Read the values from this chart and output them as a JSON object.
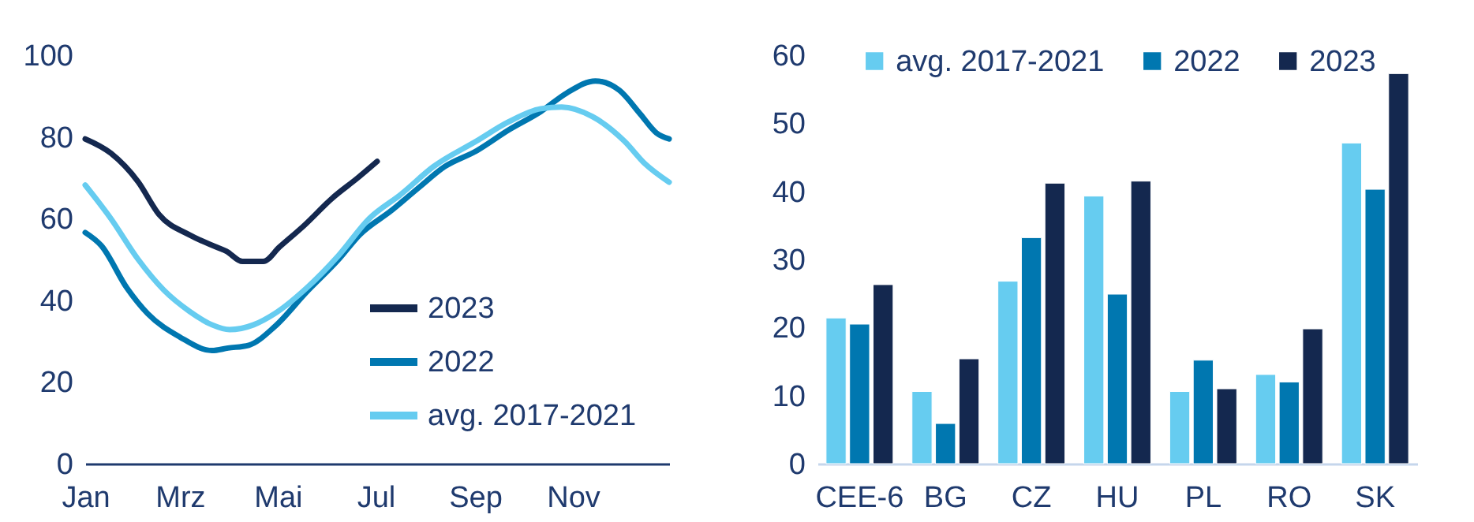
{
  "chart_data": [
    {
      "type": "line",
      "xlim": [
        "--01-01",
        "--12-31"
      ],
      "xticks": [
        {
          "value": "--01-01",
          "label": "Jan"
        },
        {
          "value": "--03-01",
          "label": "Mrz"
        },
        {
          "value": "--05-01",
          "label": "Mai"
        },
        {
          "value": "--07-01",
          "label": "Jul"
        },
        {
          "value": "--09-01",
          "label": "Sep"
        },
        {
          "value": "--11-01",
          "label": "Nov"
        }
      ],
      "ylim": [
        0,
        100
      ],
      "yticks": [
        0,
        20,
        40,
        60,
        80,
        100
      ],
      "legend": "bottom right",
      "series": [
        {
          "name": "2023",
          "color": "#14284f",
          "x": [
            "--01-01",
            "--01-17",
            "--02-03",
            "--02-16",
            "--03-07",
            "--03-24",
            "--03-30",
            "--04-09",
            "--04-22",
            "--05-02",
            "--05-18",
            "--06-04",
            "--06-20",
            "--07-02"
          ],
          "values": [
            79.5,
            76,
            69,
            61,
            56,
            53,
            52,
            49.5,
            49.5,
            53,
            58.5,
            65,
            70,
            74
          ]
        },
        {
          "name": "2022",
          "color": "#0077b0",
          "x": [
            "--01-01",
            "--01-11",
            "--01-27",
            "--02-09",
            "--03-01",
            "--03-21",
            "--03-31",
            "--04-13",
            "--04-29",
            "--05-19",
            "--06-08",
            "--06-21",
            "--07-11",
            "--07-28",
            "--08-13",
            "--09-02",
            "--09-22",
            "--10-12",
            "--10-28",
            "--11-15",
            "--11-30",
            "--12-13",
            "--12-23",
            "--12-31"
          ],
          "values": [
            56.6,
            53.4,
            43,
            36.7,
            31,
            27.7,
            28.3,
            29,
            33.5,
            42,
            50,
            56,
            62,
            67.6,
            72.7,
            76.6,
            81.7,
            86.2,
            90.7,
            93.7,
            91.4,
            85.6,
            81,
            79.5
          ]
        },
        {
          "name": "avg. 2017-2021",
          "color": "#66ccf0",
          "x": [
            "--01-01",
            "--01-17",
            "--02-03",
            "--02-19",
            "--03-07",
            "--03-21",
            "--04-01",
            "--04-16",
            "--04-29",
            "--05-19",
            "--06-08",
            "--06-27",
            "--07-17",
            "--08-06",
            "--09-02",
            "--09-22",
            "--10-12",
            "--10-25",
            "--11-13",
            "--12-03",
            "--12-16",
            "--12-31"
          ],
          "values": [
            68.2,
            60,
            50,
            42.5,
            37.3,
            34,
            32.8,
            34,
            36.7,
            43,
            51,
            60,
            66,
            72.7,
            79,
            83.7,
            86.9,
            87.3,
            85,
            79,
            73.4,
            68.9
          ]
        }
      ]
    },
    {
      "type": "bar",
      "categories": [
        "CEE-6",
        "BG",
        "CZ",
        "HU",
        "PL",
        "RO",
        "SK"
      ],
      "ylim": [
        0,
        60
      ],
      "yticks": [
        0,
        10,
        20,
        30,
        40,
        50,
        60
      ],
      "legend": "top",
      "series": [
        {
          "name": "avg. 2017-2021",
          "color": "#66ccf0",
          "values": [
            21.4,
            10.6,
            26.8,
            39.3,
            10.6,
            13.1,
            47.1
          ]
        },
        {
          "name": "2022",
          "color": "#0077b0",
          "values": [
            20.5,
            5.9,
            33.2,
            24.9,
            15.2,
            12.0,
            40.3
          ]
        },
        {
          "name": "2023",
          "color": "#14284f",
          "values": [
            26.3,
            15.4,
            41.2,
            41.5,
            11.0,
            19.8,
            57.3
          ]
        }
      ]
    }
  ]
}
